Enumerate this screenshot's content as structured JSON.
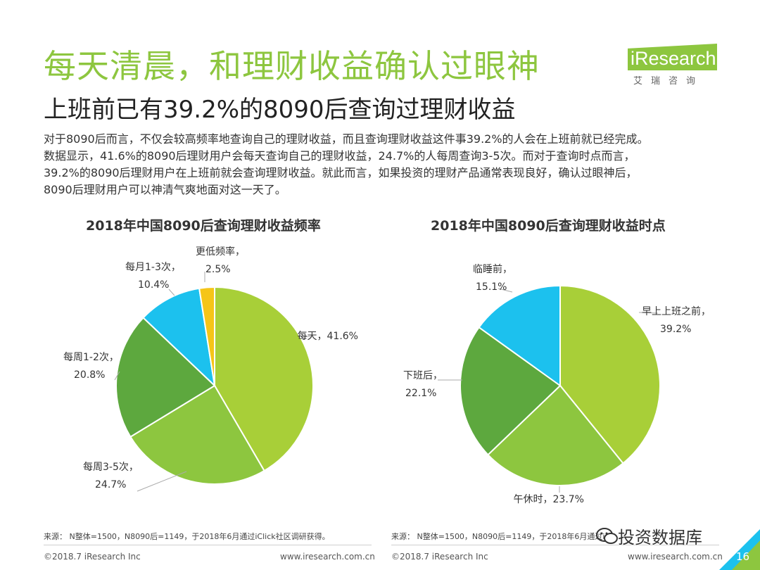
{
  "header": {
    "title": "每天清晨，和理财收益确认过眼神",
    "subtitle": "上班前已有39.2%的8090后查询过理财收益"
  },
  "logo": {
    "brand": "iResearch",
    "cn": "艾瑞咨询",
    "color": "#8dc63f"
  },
  "paragraph": [
    "对于8090后而言，不仅会较高频率地查询自己的理财收益，而且查询理财收益这件事39.2%的人会在上班前就已经完成。",
    "数据显示，41.6%的8090后理财用户会每天查询自己的理财收益，24.7%的人每周查询3-5次。而对于查询时点而言，",
    "39.2%的8090后理财用户在上班前就会查询理财收益。就此而言，如果投资的理财产品通常表现良好，确认过眼神后，",
    "8090后理财用户可以神清气爽地面对这一天了。"
  ],
  "chart_data": [
    {
      "type": "pie",
      "title": "2018年中国8090后查询理财收益频率",
      "slices": [
        {
          "name": "每天",
          "pct_label": "41.6%",
          "value": 41.6,
          "color": "#a8cf38",
          "label_style": "inline"
        },
        {
          "name": "每周3-5次",
          "pct_label": "24.7%",
          "value": 24.7,
          "color": "#8dc63f",
          "label_style": "two-line"
        },
        {
          "name": "每周1-2次",
          "pct_label": "20.8%",
          "value": 20.8,
          "color": "#5da83e",
          "label_style": "two-line"
        },
        {
          "name": "每月1-3次",
          "pct_label": "10.4%",
          "value": 10.4,
          "color": "#1cc1ee",
          "label_style": "two-line"
        },
        {
          "name": "更低频率",
          "pct_label": "2.5%",
          "value": 2.5,
          "color": "#f5c518",
          "label_style": "two-line"
        }
      ]
    },
    {
      "type": "pie",
      "title": "2018年中国8090后查询理财收益时点",
      "slices": [
        {
          "name": "早上上班之前",
          "pct_label": "39.2%",
          "value": 39.2,
          "color": "#a8cf38",
          "label_style": "two-line"
        },
        {
          "name": "午休时",
          "pct_label": "23.7%",
          "value": 23.7,
          "color": "#8dc63f",
          "label_style": "inline"
        },
        {
          "name": "下班后",
          "pct_label": "22.1%",
          "value": 22.1,
          "color": "#5da83e",
          "label_style": "two-line"
        },
        {
          "name": "临睡前",
          "pct_label": "15.1%",
          "value": 15.1,
          "color": "#1cc1ee",
          "label_style": "two-line"
        }
      ]
    }
  ],
  "sources": {
    "left": "来源： N整体=1500，N8090后=1149，于2018年6月通过iClick社区调研获得。",
    "right": "来源： N整体=1500，N8090后=1149，于2018年6月通过iClick社区调研获得。"
  },
  "footer": {
    "copyright": "©2018.7 iResearch Inc",
    "url": "www.iresearch.com.cn",
    "page": "16"
  },
  "watermark": "投资数据库"
}
